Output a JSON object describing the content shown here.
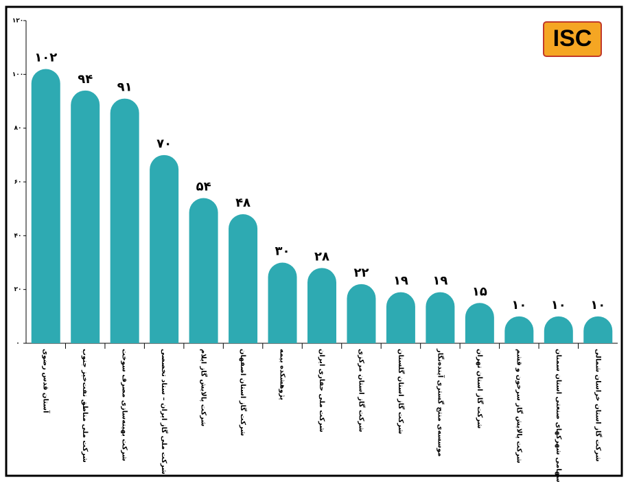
{
  "chart_data": {
    "type": "bar",
    "logo": "ISC",
    "categories": [
      "آستان قدس رضوی",
      "شرکت ملی مناطق نفت‌خیز جنوب",
      "شرکت بهینه‌سازی مصرف سوخت",
      "شرکت ملی گاز ایران – ستاد تخصصی",
      "شرکت پالایش گاز ایلام",
      "شرکت گاز استان اصفهان",
      "پژوهشکده بیمه",
      "شرکت ملی حفاری ایران",
      "شرکت گاز استان مرکزی",
      "شرکت گاز استان گلستان",
      "موسسه‌ی منتج گستری آینده‌نگار",
      "شرکت گاز استان تهران",
      "شرکت پالایش گاز سرخون و قشم",
      "شرکت سهامی شهرکهای صنعتی استان سمنان",
      "شرکت گاز استان خراسان شمالی"
    ],
    "values": [
      102,
      94,
      91,
      70,
      54,
      48,
      30,
      28,
      22,
      19,
      19,
      15,
      10,
      10,
      10
    ],
    "value_labels": [
      "۱۰۲",
      "۹۴",
      "۹۱",
      "۷۰",
      "۵۴",
      "۴۸",
      "۳۰",
      "۲۸",
      "۲۲",
      "۱۹",
      "۱۹",
      "۱۵",
      "۱۰",
      "۱۰",
      "۱۰"
    ],
    "color": "#2eaab2",
    "ylim": [
      0,
      120
    ],
    "yticks": [
      {
        "value": 0,
        "label": "۰"
      },
      {
        "value": 20,
        "label": "۲۰"
      },
      {
        "value": 40,
        "label": "۴۰"
      },
      {
        "value": 60,
        "label": "۶۰"
      },
      {
        "value": 80,
        "label": "۸۰"
      },
      {
        "value": 100,
        "label": "۱۰۰"
      },
      {
        "value": 120,
        "label": "۱۲۰"
      }
    ]
  }
}
